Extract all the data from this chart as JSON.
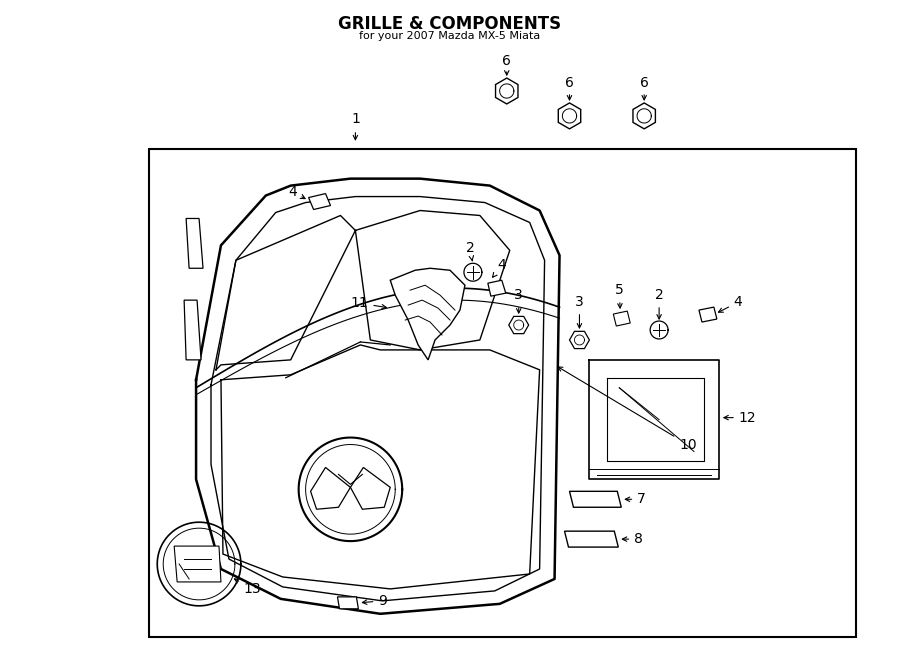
{
  "title": "GRILLE & COMPONENTS",
  "subtitle": "for your 2007 Mazda MX-5 Miata",
  "bg_color": "#ffffff",
  "lc": "#000000",
  "label_fontsize": 10,
  "figsize": [
    9.0,
    6.61
  ],
  "dpi": 100
}
